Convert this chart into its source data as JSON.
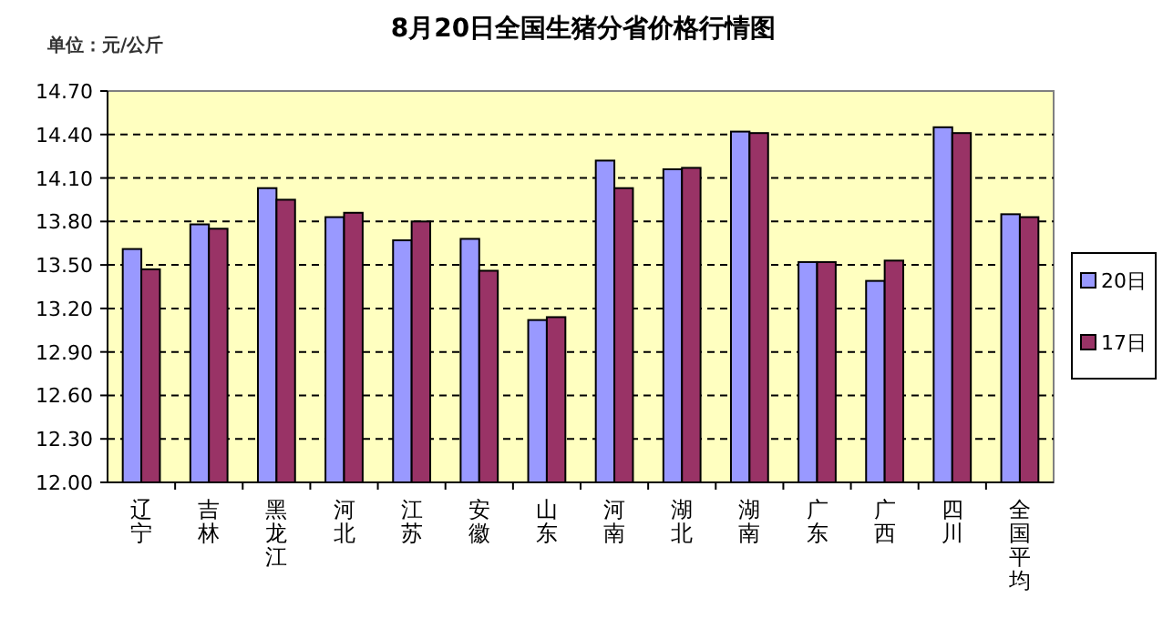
{
  "chart_data": {
    "type": "bar",
    "title": "8月20日全国生猪分省价格行情图",
    "ylabel": "单位：元/公斤",
    "categories": [
      "辽宁",
      "吉林",
      "黑龙江",
      "河北",
      "江苏",
      "安徽",
      "山东",
      "河南",
      "湖北",
      "湖南",
      "广东",
      "广西",
      "四川",
      "全国平均"
    ],
    "series": [
      {
        "name": "20日",
        "color": "#9999ff",
        "values": [
          13.61,
          13.78,
          14.03,
          13.83,
          13.67,
          13.68,
          13.12,
          14.22,
          14.16,
          14.42,
          13.52,
          13.39,
          14.45,
          13.85
        ]
      },
      {
        "name": "17日",
        "color": "#993366",
        "values": [
          13.47,
          13.75,
          13.95,
          13.86,
          13.8,
          13.46,
          13.14,
          14.03,
          14.17,
          14.41,
          13.52,
          13.53,
          14.41,
          13.83
        ]
      }
    ],
    "ylim": [
      12.0,
      14.7
    ],
    "yticks": [
      {
        "value": 12.0,
        "label": "12.00"
      },
      {
        "value": 12.3,
        "label": "12.30"
      },
      {
        "value": 12.6,
        "label": "12.60"
      },
      {
        "value": 12.9,
        "label": "12.90"
      },
      {
        "value": 13.2,
        "label": "13.20"
      },
      {
        "value": 13.5,
        "label": "13.50"
      },
      {
        "value": 13.8,
        "label": "13.80"
      },
      {
        "value": 14.1,
        "label": "14.10"
      },
      {
        "value": 14.4,
        "label": "14.40"
      },
      {
        "value": 14.7,
        "label": "14.70"
      }
    ],
    "grid": "y",
    "legend": "right"
  }
}
